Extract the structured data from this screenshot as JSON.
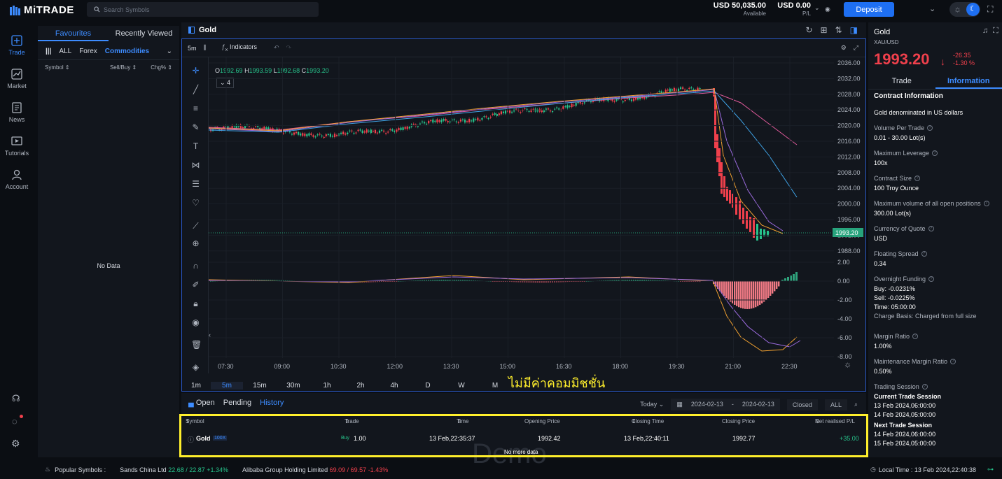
{
  "topbar": {
    "logo": "MiTRADE",
    "search_placeholder": "Search Symbols",
    "balance_value": "USD 50,035.00",
    "balance_label": "Available",
    "pl_value": "USD 0.00",
    "pl_label": "P/L",
    "deposit": "Deposit"
  },
  "nav": [
    {
      "label": "Trade",
      "icon": "trade-icon"
    },
    {
      "label": "Market",
      "icon": "market-icon"
    },
    {
      "label": "News",
      "icon": "news-icon"
    },
    {
      "label": "Tutorials",
      "icon": "tutorials-icon"
    },
    {
      "label": "Account",
      "icon": "account-icon"
    }
  ],
  "watchlist": {
    "tabs": [
      "Favourites",
      "Recently Viewed"
    ],
    "filters": [
      "ALL",
      "Forex",
      "Commodities"
    ],
    "columns": [
      "Symbol",
      "Sell/Buy",
      "Chg%"
    ],
    "empty": "No Data"
  },
  "chart": {
    "title": "Gold",
    "interval": "5m",
    "indicators": "Indicators",
    "ohlc": {
      "o": "1992.69",
      "h": "1993.59",
      "l": "1992.68",
      "c": "1993.20"
    },
    "legend_count": "4",
    "price_ticks": [
      "2036.00",
      "2032.00",
      "2028.00",
      "2024.00",
      "2020.00",
      "2016.00",
      "2012.00",
      "2008.00",
      "2004.00",
      "2000.00",
      "1996.00",
      "1992.00",
      "1988.00"
    ],
    "current_price": "1993.20",
    "macd_ticks": [
      "2.00",
      "0.00",
      "-2.00",
      "-4.00",
      "-6.00",
      "-8.00"
    ],
    "time_ticks": [
      "07:30",
      "09:00",
      "10:30",
      "12:00",
      "13:30",
      "15:00",
      "16:30",
      "18:00",
      "19:30",
      "21:00",
      "22:30"
    ],
    "timeframes": [
      "1m",
      "5m",
      "15m",
      "30m",
      "1h",
      "2h",
      "4h",
      "D",
      "W",
      "M"
    ],
    "active_timeframe": "5m"
  },
  "annotation": {
    "thai_text": "ไม่มีค่าคอมมิชชั่น",
    "color": "#ffef2c"
  },
  "orders": {
    "tabs": [
      "Open",
      "Pending",
      "History"
    ],
    "active_tab": "History",
    "period": "Today",
    "date_from": "2024-02-13",
    "date_sep": "-",
    "date_to": "2024-02-13",
    "status": "Closed",
    "scope": "ALL",
    "columns": [
      "Symbol",
      "Trade",
      "Time",
      "Opening Price",
      "Closing Time",
      "Closing Price",
      "Net realised P/L"
    ],
    "rows": [
      {
        "symbol": "Gold",
        "leverage": "100X",
        "side": "Buy",
        "qty": "1.00",
        "time": "13 Feb,22:35:37",
        "open": "1992.42",
        "close_time": "13 Feb,22:40:11",
        "close": "1992.77",
        "pl": "+35.00"
      }
    ],
    "no_more": "No more data",
    "watermark": "Demo"
  },
  "info": {
    "name": "Gold",
    "symbol": "XAU/USD",
    "price": "1993.20",
    "change": "-26.35",
    "change_pct": "-1.30 %",
    "tabs": [
      "Trade",
      "Information"
    ],
    "active_tab": "Information",
    "heading": "Contract Information",
    "desc": "Gold denominated in US dollars",
    "fields": [
      {
        "label": "Volume Per Trade",
        "value": "0.01 - 30.00 Lot(s)"
      },
      {
        "label": "Maximum Leverage",
        "value": "100x"
      },
      {
        "label": "Contract Size",
        "value": "100 Troy Ounce"
      },
      {
        "label": "Maximum volume of all open positions",
        "value": "300.00 Lot(s)"
      },
      {
        "label": "Currency of Quote",
        "value": "USD"
      },
      {
        "label": "Floating Spread",
        "value": "0.34"
      }
    ],
    "funding": {
      "label": "Overnight Funding",
      "buy": "Buy:  -0.0231%",
      "sell": "Sell:  -0.0225%",
      "time": "Time:  05:00:00",
      "basis": "Charge Basis:  Charged from full size"
    },
    "fields2": [
      {
        "label": "Margin Ratio",
        "value": "1.00%"
      },
      {
        "label": "Maintenance Margin Ratio",
        "value": "0.50%"
      }
    ],
    "session": {
      "label": "Trading Session",
      "current": "Current Trade Session",
      "current_from": "13 Feb 2024,06:00:00",
      "current_to": "14 Feb 2024,05:00:00",
      "next": "Next Trade Session",
      "next_from": "14 Feb 2024,06:00:00",
      "next_to": "15 Feb 2024,05:00:00"
    }
  },
  "bottombar": {
    "popular_label": "Popular Symbols :",
    "items": [
      {
        "name": "Sands China Ltd",
        "quote": "22.68 / 22.87",
        "chg": "+1.34%",
        "color": "#27c48c"
      },
      {
        "name": "Alibaba Group Holding Limited",
        "quote": "69.09 / 69.57",
        "chg": "-1.43%",
        "color": "#f0404c"
      }
    ],
    "local_time": "Local Time : 13 Feb 2024,22:40:38"
  },
  "colors": {
    "up": "#27c48c",
    "down": "#f0404c",
    "accent": "#3d8cff"
  }
}
